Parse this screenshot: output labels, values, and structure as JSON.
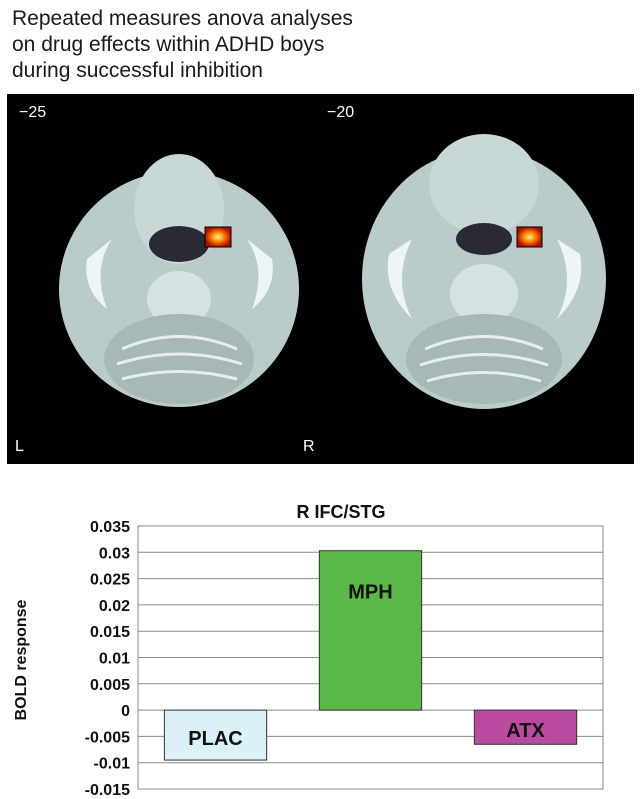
{
  "caption": {
    "line1": "Repeated measures anova analyses",
    "line2": "on drug effects within ADHD boys",
    "line3": "during successful inhibition"
  },
  "scans": [
    {
      "slice": "−25",
      "side": "L"
    },
    {
      "slice": "−20",
      "side": "R"
    }
  ],
  "chart_data": {
    "type": "bar",
    "title": "R IFC/STG",
    "ylabel": "BOLD response",
    "xlabel": "",
    "categories": [
      "PLAC",
      "MPH",
      "ATX"
    ],
    "values": [
      -0.0095,
      0.0303,
      -0.0065
    ],
    "colors": [
      "#dcf0f7",
      "#5ab946",
      "#b94a9f"
    ],
    "ylim": [
      -0.015,
      0.035
    ],
    "yticks": [
      0.035,
      0.03,
      0.025,
      0.02,
      0.015,
      0.01,
      0.005,
      0,
      -0.005,
      -0.01,
      -0.015
    ],
    "ytick_labels": [
      "0.035",
      "0.03",
      "0.025",
      "0.02",
      "0.015",
      "0.01",
      "0.005",
      "0",
      "-0.005",
      "-0.01",
      "-0.015"
    ],
    "grid": true
  }
}
